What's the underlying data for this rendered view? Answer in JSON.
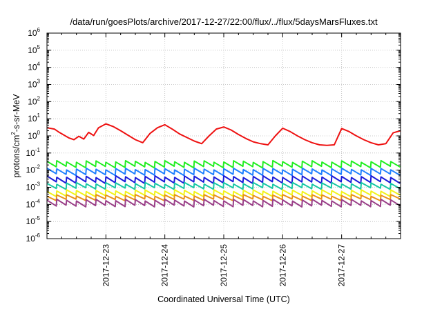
{
  "chart_data": {
    "type": "line",
    "title": "/data/run/goesPlots/archive/2017-12-27/22:00/flux/../flux/5daysMarsFluxes.txt",
    "xlabel": "Coordinated Universal Time (UTC)",
    "ylabel": {
      "base": "protons/cm",
      "sup": "2",
      "rest": "-s-sr-MeV"
    },
    "x_range": [
      "2017-12-22T00:00",
      "2017-12-28T00:00"
    ],
    "x_ticks": [
      "2017-12-23",
      "2017-12-24",
      "2017-12-25",
      "2017-12-26",
      "2017-12-27"
    ],
    "y_scale": "log",
    "ylim": [
      1e-06,
      1000000.0
    ],
    "y_ticks": [
      {
        "base": "10",
        "exp": "-6"
      },
      {
        "base": "10",
        "exp": "-5"
      },
      {
        "base": "10",
        "exp": "-4"
      },
      {
        "base": "10",
        "exp": "-3"
      },
      {
        "base": "10",
        "exp": "-2"
      },
      {
        "base": "10",
        "exp": "-1"
      },
      {
        "base": "10",
        "exp": "0"
      },
      {
        "base": "10",
        "exp": "1"
      },
      {
        "base": "10",
        "exp": "2"
      },
      {
        "base": "10",
        "exp": "3"
      },
      {
        "base": "10",
        "exp": "4"
      },
      {
        "base": "10",
        "exp": "5"
      },
      {
        "base": "10",
        "exp": "6"
      }
    ],
    "grid": true,
    "sawtooth_period_hours": 4,
    "series": [
      {
        "color": "#ee1111",
        "x": [
          "2017-12-22T00:00",
          "2017-12-22T03:00",
          "2017-12-22T05:00",
          "2017-12-22T07:00",
          "2017-12-22T09:00",
          "2017-12-22T11:00",
          "2017-12-22T13:00",
          "2017-12-22T15:00",
          "2017-12-22T17:00",
          "2017-12-22T19:00",
          "2017-12-22T21:00",
          "2017-12-23T00:00",
          "2017-12-23T03:00",
          "2017-12-23T06:00",
          "2017-12-23T09:00",
          "2017-12-23T12:00",
          "2017-12-23T15:00",
          "2017-12-23T18:00",
          "2017-12-23T21:00",
          "2017-12-24T00:00",
          "2017-12-24T03:00",
          "2017-12-24T06:00",
          "2017-12-24T09:00",
          "2017-12-24T12:00",
          "2017-12-24T15:00",
          "2017-12-24T18:00",
          "2017-12-24T21:00",
          "2017-12-25T00:00",
          "2017-12-25T03:00",
          "2017-12-25T06:00",
          "2017-12-25T09:00",
          "2017-12-25T12:00",
          "2017-12-25T15:00",
          "2017-12-25T18:00",
          "2017-12-25T21:00",
          "2017-12-26T00:00",
          "2017-12-26T03:00",
          "2017-12-26T06:00",
          "2017-12-26T09:00",
          "2017-12-26T12:00",
          "2017-12-26T15:00",
          "2017-12-26T18:00",
          "2017-12-26T21:00",
          "2017-12-27T00:00",
          "2017-12-27T03:00",
          "2017-12-27T06:00",
          "2017-12-27T09:00",
          "2017-12-27T12:00",
          "2017-12-27T15:00",
          "2017-12-27T18:00",
          "2017-12-27T21:00",
          "2017-12-28T00:00"
        ],
        "values": [
          3,
          2.5,
          1.6,
          1.1,
          0.75,
          0.6,
          0.95,
          0.65,
          1.6,
          1.05,
          3.0,
          5.0,
          3.5,
          2.0,
          1.1,
          0.6,
          0.4,
          1.4,
          3.0,
          4.5,
          2.5,
          1.3,
          0.8,
          0.5,
          0.35,
          1.0,
          2.5,
          3.3,
          2.2,
          1.2,
          0.7,
          0.45,
          0.35,
          0.3,
          1.0,
          2.8,
          1.8,
          1.0,
          0.6,
          0.4,
          0.3,
          0.28,
          0.3,
          2.7,
          1.8,
          1.0,
          0.6,
          0.4,
          0.3,
          0.35,
          1.5,
          2.0
        ]
      },
      {
        "color": "#22ee22",
        "value": 0.022,
        "amplitude": 2.1
      },
      {
        "color": "#1e7fff",
        "value": 0.008,
        "amplitude": 2.1
      },
      {
        "color": "#1b1bd8",
        "value": 0.0028,
        "amplitude": 2.2
      },
      {
        "color": "#17c7a5",
        "value": 0.0012,
        "amplitude": 2.0
      },
      {
        "color": "#f2f21a",
        "value": 0.00045,
        "amplitude": 2.0
      },
      {
        "color": "#e89018",
        "value": 0.00025,
        "amplitude": 1.8
      },
      {
        "color": "#9a3f88",
        "value": 0.00012,
        "amplitude": 2.2
      }
    ]
  }
}
